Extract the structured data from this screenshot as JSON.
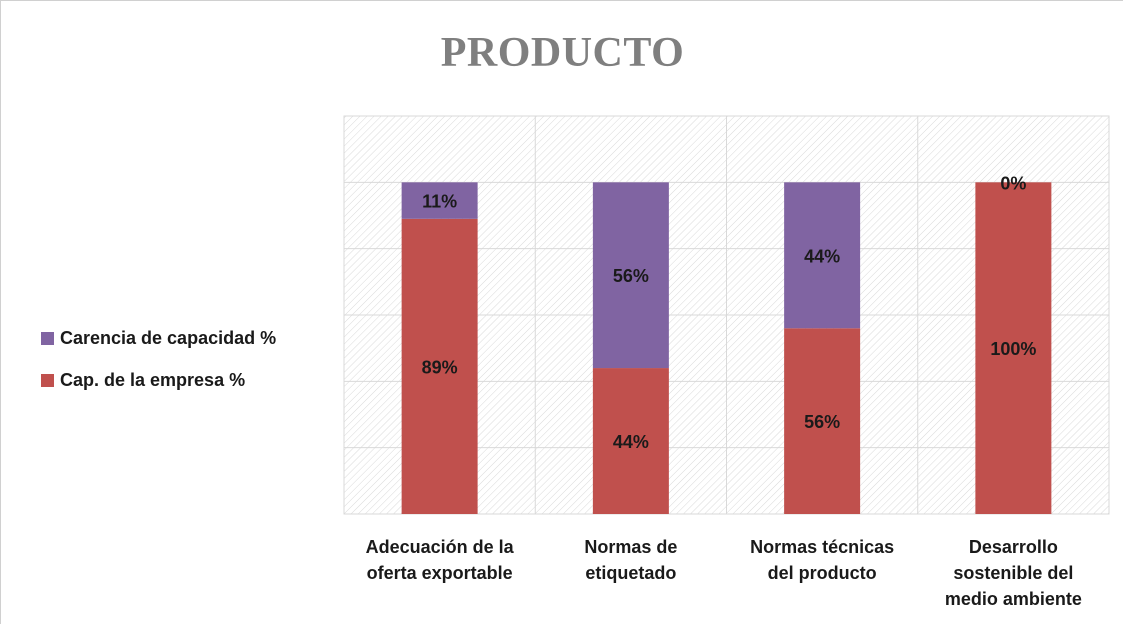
{
  "chart_data": {
    "type": "bar",
    "stacked": true,
    "percent": true,
    "title": "PRODUCTO",
    "categories": [
      "Adecuación de la\noferta exportable",
      "Normas de\netiquetado",
      "Normas técnicas\ndel producto",
      "Desarrollo\nsostenible del\nmedio ambiente"
    ],
    "series": [
      {
        "name": "Cap. de la empresa %",
        "color": "#c0504d",
        "values": [
          89,
          44,
          56,
          100
        ],
        "labels": [
          "89%",
          "44%",
          "56%",
          "100%"
        ]
      },
      {
        "name": "Carencia de capacidad %",
        "color": "#8064a2",
        "values": [
          11,
          56,
          44,
          0
        ],
        "labels": [
          "11%",
          "56%",
          "44%",
          "0%"
        ]
      }
    ],
    "legend_order": [
      1,
      0
    ],
    "legend_position": "left",
    "ylim": [
      0,
      120
    ],
    "grid": true,
    "hatched_plot_area": true
  }
}
